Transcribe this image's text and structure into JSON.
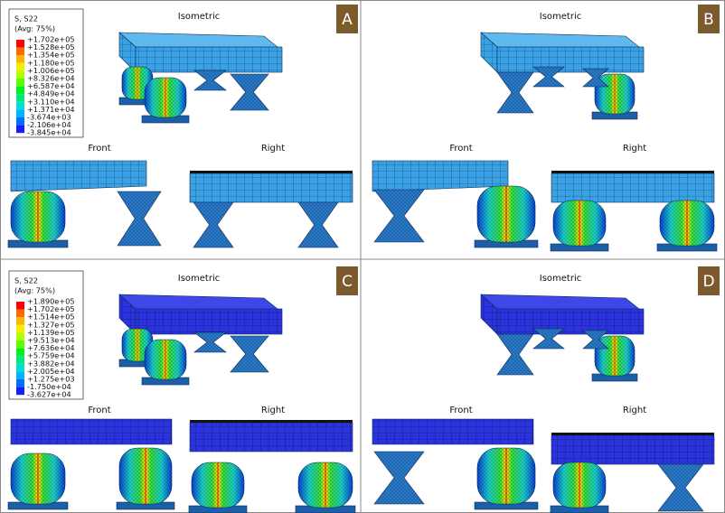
{
  "panels": [
    {
      "letter": "A",
      "views": [
        "Isometric",
        "Front",
        "Right"
      ],
      "legend": {
        "title": "S, S22",
        "subtitle": "(Avg: 75%)",
        "entries": [
          "+1.702e+05",
          "+1.528e+05",
          "+1.354e+05",
          "+1.180e+05",
          "+1.006e+05",
          "+8.326e+04",
          "+6.587e+04",
          "+4.849e+04",
          "+3.110e+04",
          "+1.371e+04",
          "-3.674e+03",
          "-2.106e+04",
          "-3.845e+04"
        ]
      }
    },
    {
      "letter": "B",
      "views": [
        "Isometric",
        "Front",
        "Right"
      ]
    },
    {
      "letter": "C",
      "views": [
        "Isometric",
        "Front",
        "Right"
      ],
      "legend": {
        "title": "S, S22",
        "subtitle": "(Avg: 75%)",
        "entries": [
          "+1.890e+05",
          "+1.702e+05",
          "+1.514e+05",
          "+1.327e+05",
          "+1.139e+05",
          "+9.513e+04",
          "+7.636e+04",
          "+5.759e+04",
          "+3.882e+04",
          "+2.005e+04",
          "+1.275e+03",
          "-1.750e+04",
          "-3.627e+04"
        ]
      }
    },
    {
      "letter": "D",
      "views": [
        "Isometric",
        "Front",
        "Right"
      ]
    }
  ]
}
